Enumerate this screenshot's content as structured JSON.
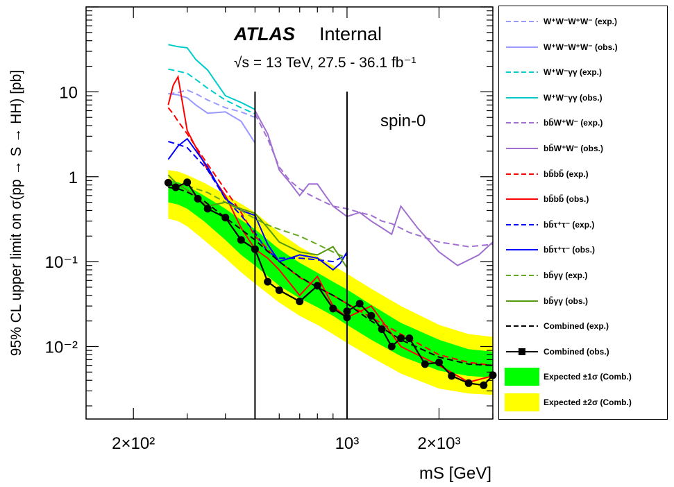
{
  "chart_data": {
    "type": "line",
    "title": "ATLAS",
    "subtitle": "Internal",
    "energy_label": "√s = 13 TeV,  27.5 - 36.1 fb⁻¹",
    "annotation": "spin-0",
    "xlabel": "mS [GeV]",
    "ylabel": "95% CL upper limit on σ(pp → S → HH) [pb]",
    "x_scale": "log",
    "y_scale": "log",
    "xlim": [
      140,
      3000
    ],
    "ylim": [
      0.0014,
      100
    ],
    "x_ticks": [
      {
        "value": 200,
        "label": "2×10²"
      },
      {
        "value": 1000,
        "label": "10³"
      },
      {
        "value": 2000,
        "label": "2×10³"
      }
    ],
    "y_ticks": [
      {
        "value": 10,
        "label": "10"
      },
      {
        "value": 1,
        "label": "1"
      },
      {
        "value": 0.1,
        "label": "10⁻¹"
      },
      {
        "value": 0.01,
        "label": "10⁻²"
      }
    ],
    "vertical_lines": [
      500,
      1000
    ],
    "bands": [
      {
        "name": "Expected ±2σ (Comb.)",
        "color": "#ffff00",
        "x": [
          260,
          280,
          300,
          340,
          400,
          450,
          500,
          600,
          700,
          800,
          900,
          1000,
          1200,
          1500,
          2000,
          2500,
          3000
        ],
        "low": [
          0.32,
          0.3,
          0.26,
          0.18,
          0.11,
          0.075,
          0.055,
          0.033,
          0.023,
          0.018,
          0.014,
          0.011,
          0.0075,
          0.0048,
          0.0032,
          0.0028,
          0.0027
        ],
        "high": [
          1.2,
          1.15,
          1.05,
          0.85,
          0.62,
          0.48,
          0.38,
          0.22,
          0.15,
          0.115,
          0.09,
          0.072,
          0.048,
          0.03,
          0.018,
          0.014,
          0.013
        ]
      },
      {
        "name": "Expected ±1σ (Comb.)",
        "color": "#00ff00",
        "x": [
          260,
          280,
          300,
          340,
          400,
          450,
          500,
          600,
          700,
          800,
          900,
          1000,
          1200,
          1500,
          2000,
          2500,
          3000
        ],
        "low": [
          0.5,
          0.47,
          0.42,
          0.3,
          0.18,
          0.12,
          0.09,
          0.052,
          0.037,
          0.029,
          0.023,
          0.018,
          0.012,
          0.0077,
          0.0052,
          0.0045,
          0.0043
        ],
        "high": [
          0.92,
          0.86,
          0.78,
          0.6,
          0.42,
          0.31,
          0.24,
          0.14,
          0.097,
          0.074,
          0.058,
          0.047,
          0.031,
          0.019,
          0.012,
          0.0093,
          0.0087
        ]
      }
    ],
    "series": [
      {
        "name": "W⁺W⁻W⁺W⁻ (exp.)",
        "color": "#9999ff",
        "dash": true,
        "x": [
          260,
          280,
          300,
          320,
          350,
          400,
          450,
          500
        ],
        "y": [
          9.5,
          9.8,
          10.5,
          9.5,
          8.0,
          6.5,
          5.8,
          5.0
        ]
      },
      {
        "name": "W⁺W⁻W⁺W⁻ (obs.)",
        "color": "#9999ff",
        "dash": false,
        "x": [
          260,
          280,
          300,
          320,
          350,
          400,
          450,
          500
        ],
        "y": [
          9.5,
          9.2,
          8.5,
          7.0,
          5.6,
          5.8,
          4.5,
          2.5
        ]
      },
      {
        "name": "W⁺W⁻γγ (exp.)",
        "color": "#00cccc",
        "dash": true,
        "x": [
          260,
          280,
          300,
          320,
          350,
          400,
          450,
          500
        ],
        "y": [
          18.5,
          17.5,
          16.5,
          14.0,
          11.0,
          8.0,
          6.5,
          5.5
        ]
      },
      {
        "name": "W⁺W⁻γγ (obs.)",
        "color": "#00cccc",
        "dash": false,
        "x": [
          260,
          280,
          300,
          320,
          350,
          400,
          450,
          500
        ],
        "y": [
          36,
          34,
          33,
          24,
          18,
          9.0,
          7.5,
          6.2
        ]
      },
      {
        "name": "bb̄W⁺W⁻ (exp.)",
        "color": "#a070d0",
        "dash": true,
        "x": [
          500,
          550,
          600,
          650,
          700,
          750,
          800,
          900,
          1000,
          1100,
          1200,
          1300,
          1400,
          1600,
          2000,
          2500,
          3000
        ],
        "y": [
          5.5,
          2.8,
          1.3,
          0.9,
          0.72,
          0.62,
          0.55,
          0.45,
          0.42,
          0.38,
          0.35,
          0.3,
          0.28,
          0.22,
          0.17,
          0.15,
          0.16
        ]
      },
      {
        "name": "bb̄W⁺W⁻ (obs.)",
        "color": "#a070d0",
        "dash": false,
        "x": [
          500,
          550,
          600,
          650,
          700,
          750,
          800,
          850,
          900,
          1000,
          1100,
          1200,
          1300,
          1400,
          1500,
          1700,
          2000,
          2300,
          2700,
          3000
        ],
        "y": [
          6.0,
          3.2,
          1.2,
          0.85,
          0.6,
          0.82,
          0.82,
          0.6,
          0.45,
          0.34,
          0.38,
          0.3,
          0.25,
          0.21,
          0.45,
          0.25,
          0.13,
          0.09,
          0.12,
          0.17
        ]
      },
      {
        "name": "bb̄bb̄ (exp.)",
        "color": "#ff0000",
        "dash": true,
        "x": [
          260,
          270,
          280,
          300,
          350,
          400,
          450,
          500,
          550,
          600,
          700,
          800,
          900,
          1000,
          1200,
          1500,
          2000,
          2500,
          3000
        ],
        "y": [
          6.5,
          5.5,
          4.5,
          3.2,
          1.4,
          0.7,
          0.38,
          0.2,
          0.14,
          0.1,
          0.065,
          0.05,
          0.04,
          0.032,
          0.022,
          0.014,
          0.008,
          0.0065,
          0.006
        ]
      },
      {
        "name": "bb̄bb̄ (obs.)",
        "color": "#ff0000",
        "dash": false,
        "x": [
          260,
          270,
          280,
          300,
          350,
          400,
          450,
          500,
          550,
          600,
          700,
          800,
          900,
          1000,
          1200,
          1500,
          2000,
          2500,
          3000
        ],
        "y": [
          7.0,
          12.0,
          15.0,
          3.5,
          1.2,
          0.6,
          0.25,
          0.14,
          0.11,
          0.08,
          0.04,
          0.067,
          0.03,
          0.022,
          0.03,
          0.01,
          0.006,
          0.0038,
          0.0045
        ]
      },
      {
        "name": "bb̄τ⁺τ⁻ (exp.)",
        "color": "#0000ff",
        "dash": true,
        "x": [
          260,
          280,
          300,
          350,
          400,
          450,
          500,
          550,
          600,
          700,
          800,
          900,
          1000
        ],
        "y": [
          2.6,
          2.4,
          2.2,
          1.2,
          0.55,
          0.35,
          0.22,
          0.13,
          0.11,
          0.11,
          0.105,
          0.1,
          0.12
        ]
      },
      {
        "name": "bb̄τ⁺τ⁻ (obs.)",
        "color": "#0000ff",
        "dash": false,
        "x": [
          260,
          280,
          300,
          350,
          400,
          450,
          500,
          550,
          600,
          700,
          800,
          900,
          950,
          1000
        ],
        "y": [
          1.6,
          2.3,
          2.8,
          1.3,
          0.55,
          0.4,
          0.35,
          0.16,
          0.1,
          0.12,
          0.11,
          0.08,
          0.095,
          0.13
        ]
      },
      {
        "name": "bb̄γγ (exp.)",
        "color": "#66aa22",
        "dash": true,
        "x": [
          260,
          280,
          300,
          350,
          400,
          450,
          500,
          550,
          600,
          700,
          800,
          900,
          1000
        ],
        "y": [
          0.88,
          0.82,
          0.78,
          0.65,
          0.5,
          0.4,
          0.32,
          0.27,
          0.24,
          0.2,
          0.16,
          0.13,
          0.11
        ]
      },
      {
        "name": "bb̄γγ (obs.)",
        "color": "#559911",
        "dash": false,
        "x": [
          260,
          280,
          300,
          350,
          400,
          450,
          500,
          550,
          600,
          700,
          800,
          900,
          1000
        ],
        "y": [
          1.05,
          0.8,
          0.7,
          0.45,
          0.5,
          0.42,
          0.37,
          0.25,
          0.17,
          0.13,
          0.12,
          0.15,
          0.085
        ]
      },
      {
        "name": "Combined (exp.)",
        "color": "#000000",
        "dash": true,
        "x": [
          260,
          280,
          300,
          340,
          400,
          450,
          500,
          600,
          700,
          800,
          900,
          1000,
          1200,
          1500,
          2000,
          2500,
          3000
        ],
        "y": [
          0.75,
          0.72,
          0.66,
          0.52,
          0.33,
          0.24,
          0.18,
          0.1,
          0.066,
          0.05,
          0.04,
          0.032,
          0.02,
          0.012,
          0.0075,
          0.0062,
          0.006
        ]
      },
      {
        "name": "Combined (obs.)",
        "color": "#000000",
        "dash": false,
        "markers": true,
        "x": [
          260,
          275,
          300,
          325,
          350,
          400,
          450,
          500,
          550,
          600,
          700,
          800,
          900,
          1000,
          1000,
          1100,
          1200,
          1300,
          1400,
          1500,
          1600,
          1800,
          2000,
          2200,
          2500,
          2800,
          3000
        ],
        "y": [
          0.85,
          0.75,
          0.86,
          0.55,
          0.42,
          0.33,
          0.18,
          0.14,
          0.058,
          0.046,
          0.034,
          0.052,
          0.028,
          0.022,
          0.026,
          0.032,
          0.023,
          0.016,
          0.01,
          0.0125,
          0.0125,
          0.0062,
          0.0065,
          0.0045,
          0.0037,
          0.0035,
          0.0046
        ]
      }
    ],
    "legend": {
      "placement": "right",
      "entries": [
        {
          "label": "W⁺W⁻W⁺W⁻ (exp.)",
          "kind": "dash",
          "color": "#9999ff"
        },
        {
          "label": "W⁺W⁻W⁺W⁻ (obs.)",
          "kind": "line",
          "color": "#9999ff"
        },
        {
          "label": "W⁺W⁻γγ (exp.)",
          "kind": "dash",
          "color": "#00cccc"
        },
        {
          "label": "W⁺W⁻γγ (obs.)",
          "kind": "line",
          "color": "#00cccc"
        },
        {
          "label": "bb̄W⁺W⁻ (exp.)",
          "kind": "dash",
          "color": "#a070d0"
        },
        {
          "label": "bb̄W⁺W⁻ (obs.)",
          "kind": "line",
          "color": "#a070d0"
        },
        {
          "label": "bb̄bb̄ (exp.)",
          "kind": "dash",
          "color": "#ff0000"
        },
        {
          "label": "bb̄bb̄ (obs.)",
          "kind": "line",
          "color": "#ff0000"
        },
        {
          "label": "bb̄τ⁺τ⁻ (exp.)",
          "kind": "dash",
          "color": "#0000ff"
        },
        {
          "label": "bb̄τ⁺τ⁻ (obs.)",
          "kind": "line",
          "color": "#0000ff"
        },
        {
          "label": "bb̄γγ (exp.)",
          "kind": "dash",
          "color": "#66aa22"
        },
        {
          "label": "bb̄γγ (obs.)",
          "kind": "line",
          "color": "#559911"
        },
        {
          "label": "Combined (exp.)",
          "kind": "dash",
          "color": "#000000"
        },
        {
          "label": "Combined (obs.)",
          "kind": "marker",
          "color": "#000000"
        },
        {
          "label": "Expected ±1σ (Comb.)",
          "kind": "box",
          "color": "#00ff00"
        },
        {
          "label": "Expected ±2σ (Comb.)",
          "kind": "box",
          "color": "#ffff00"
        }
      ]
    }
  }
}
